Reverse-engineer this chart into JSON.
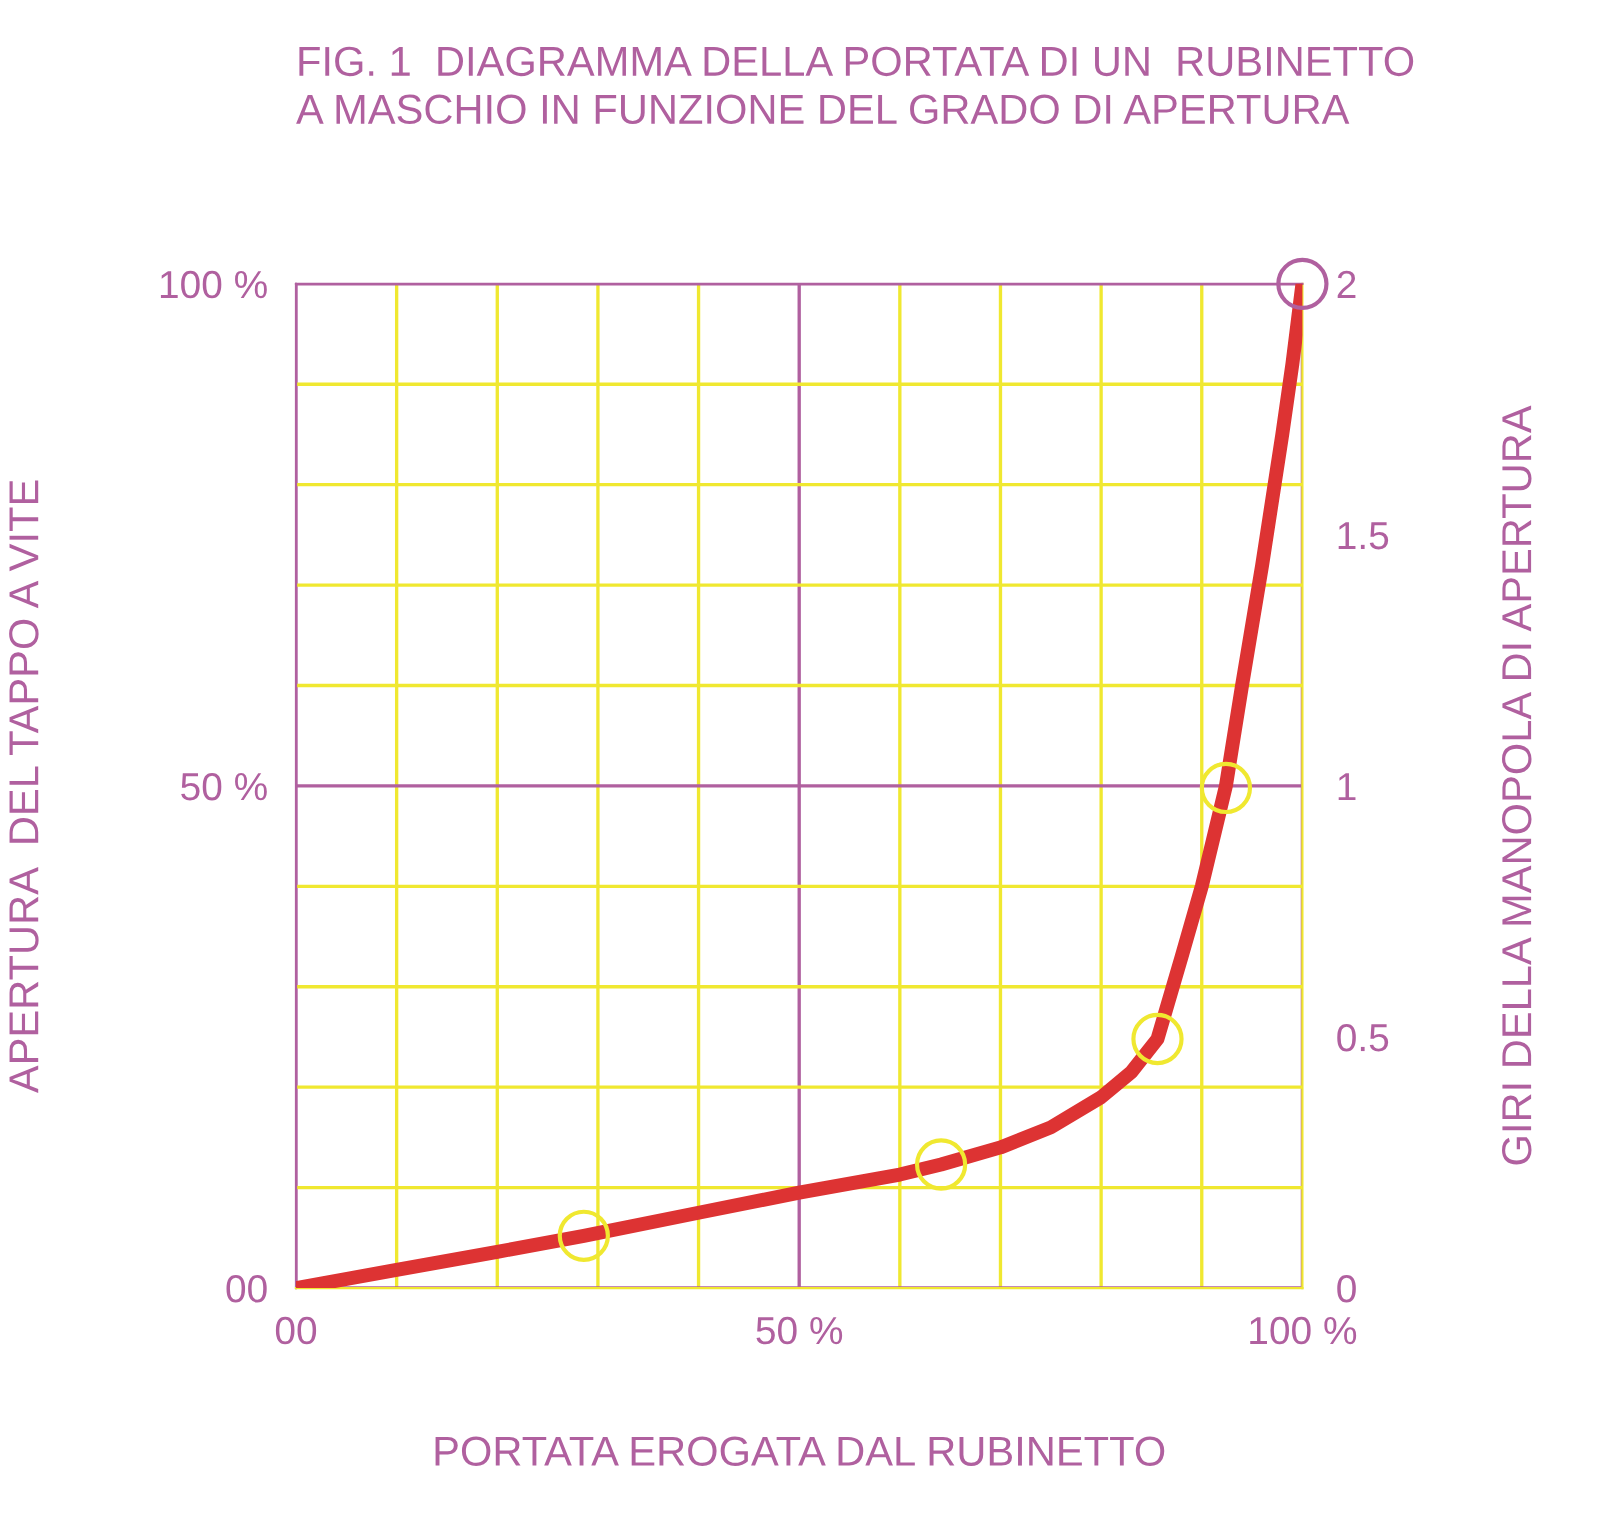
{
  "chart_data": {
    "type": "line",
    "title": "FIG. 1  DIAGRAMMA DELLA PORTATA DI UN  RUBINETTO\nA MASCHIO IN FUNZIONE DEL GRADO DI APERTURA",
    "xlabel": "PORTATA EROGATA DAL RUBINETTO",
    "ylabel": "APERTURA  DEL TAPPO A VITE",
    "y2label": "GIRI DELLA MANOPOLA DI APERTURA",
    "xlim": [
      0,
      100
    ],
    "ylim": [
      0,
      100
    ],
    "y2lim": [
      0,
      2
    ],
    "xticks": [
      {
        "value": 0,
        "label": "00"
      },
      {
        "value": 10,
        "label": null
      },
      {
        "value": 20,
        "label": null
      },
      {
        "value": 30,
        "label": null
      },
      {
        "value": 40,
        "label": null
      },
      {
        "value": 50,
        "label": "50 %"
      },
      {
        "value": 60,
        "label": null
      },
      {
        "value": 70,
        "label": null
      },
      {
        "value": 80,
        "label": null
      },
      {
        "value": 90,
        "label": null
      },
      {
        "value": 100,
        "label": "100 %"
      }
    ],
    "yticks": [
      {
        "value": 0,
        "label": "00"
      },
      {
        "value": 10,
        "label": null
      },
      {
        "value": 20,
        "label": null
      },
      {
        "value": 30,
        "label": null
      },
      {
        "value": 40,
        "label": null
      },
      {
        "value": 50,
        "label": "50 %"
      },
      {
        "value": 60,
        "label": null
      },
      {
        "value": 70,
        "label": null
      },
      {
        "value": 80,
        "label": null
      },
      {
        "value": 90,
        "label": null
      },
      {
        "value": 100,
        "label": "100 %"
      }
    ],
    "y2ticks": [
      0,
      0.5,
      1,
      1.5,
      2
    ],
    "grid": true,
    "series": [
      {
        "color": "#dd3333",
        "line_style": "solid",
        "marker": "none",
        "x": [
          0,
          10,
          20,
          28.6,
          40,
          50,
          60,
          64.1,
          70,
          75,
          80,
          83,
          85.6,
          88,
          90,
          92.4,
          94,
          96,
          98,
          99,
          100
        ],
        "values": [
          0,
          1.8,
          3.6,
          5.2,
          7.5,
          9.5,
          11.3,
          12.3,
          14,
          16,
          19,
          21.5,
          24.8,
          33,
          40,
          50,
          60,
          72,
          85,
          92,
          100
        ]
      },
      {
        "type": "scatter",
        "marker": "circle",
        "colors": [
          "#f0e830",
          "#f0e830",
          "#f0e830",
          "#f0e830",
          "#b0609f"
        ],
        "x": [
          28.6,
          64.1,
          85.6,
          92.4,
          100
        ],
        "values": [
          5.2,
          12.3,
          24.8,
          49.8,
          100
        ]
      }
    ]
  }
}
